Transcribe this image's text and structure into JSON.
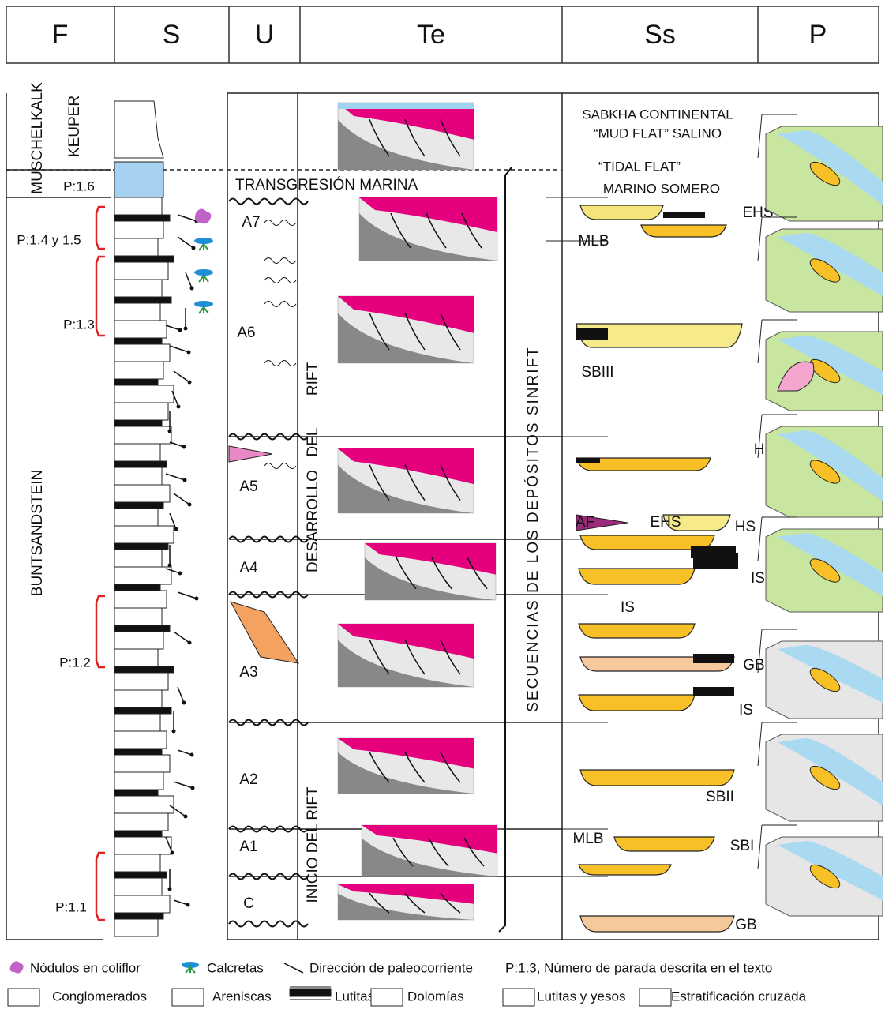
{
  "header": {
    "columns": [
      "F",
      "S",
      "U",
      "Te",
      "Ss",
      "P"
    ]
  },
  "formations": [
    "MUSCHELKALK",
    "KEUPER",
    "BUNTSANDSTEIN"
  ],
  "stops": [
    "P:1.6",
    "P:1.4 y 1.5",
    "P:1.3",
    "P:1.2",
    "P:1.1"
  ],
  "units": [
    "A7",
    "A6",
    "A5",
    "A4",
    "A3",
    "A2",
    "A1",
    "C"
  ],
  "tectonics": {
    "transgression": "TRANSGRESIÓN MARINA",
    "development": [
      "DESARROLLO",
      "DEL",
      "RIFT"
    ],
    "start": "INICIO DEL RIFT"
  },
  "sequences": {
    "title": "SECUENCIAS DE LOS DEPÓSITOS SINRIFT",
    "labels": [
      "SABKHA CONTINENTAL",
      "“MUD FLAT” SALINO",
      "“TIDAL FLAT”",
      "MARINO SOMERO",
      "EHS",
      "MLB",
      "SBIII",
      "HS",
      "AF",
      "EHS",
      "HS",
      "IS",
      "IS",
      "GB",
      "IS",
      "SBII",
      "MLB",
      "SBI",
      "GB"
    ]
  },
  "legend": {
    "items": [
      "Nódulos en coliflor",
      "Calcretas",
      "Dirección de paleocorriente",
      "P:1.3, Número de parada descrita en el texto",
      "Conglomerados",
      "Areniscas",
      "Lutitas",
      "Dolomías",
      "Lutitas y yesos",
      "Estratificación cruzada"
    ]
  }
}
